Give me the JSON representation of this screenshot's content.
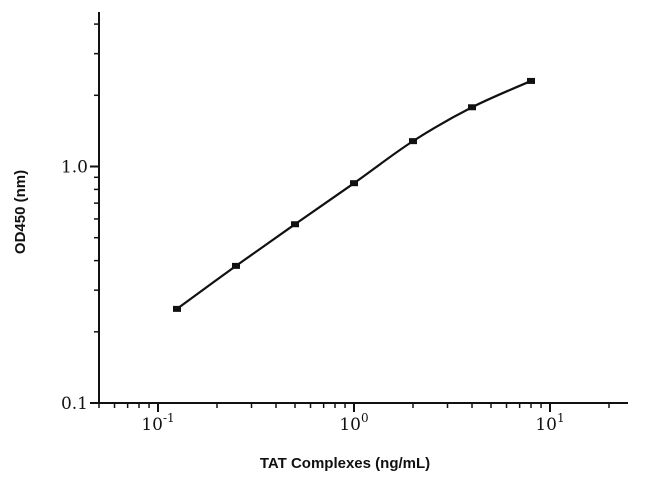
{
  "chart_data": {
    "type": "line",
    "title": "",
    "xlabel": "TAT Complexes (ng/mL)",
    "ylabel": "OD450 (nm)",
    "x_scale": "log",
    "y_scale": "log",
    "xlim": [
      0.05,
      25
    ],
    "ylim": [
      0.1,
      4.5
    ],
    "grid": false,
    "x_ticks": [
      {
        "value": 0.1,
        "base": "10",
        "exp": "-1"
      },
      {
        "value": 1,
        "base": "10",
        "exp": "0"
      },
      {
        "value": 10,
        "base": "10",
        "exp": "1"
      }
    ],
    "y_ticks": [
      {
        "value": 0.1,
        "label": "0.1"
      },
      {
        "value": 1.0,
        "label": "1.0"
      }
    ],
    "series": [
      {
        "x": [
          0.125,
          0.25,
          0.5,
          1,
          2,
          4,
          8
        ],
        "y": [
          0.25,
          0.38,
          0.57,
          0.85,
          1.28,
          1.78,
          2.3
        ]
      }
    ]
  }
}
